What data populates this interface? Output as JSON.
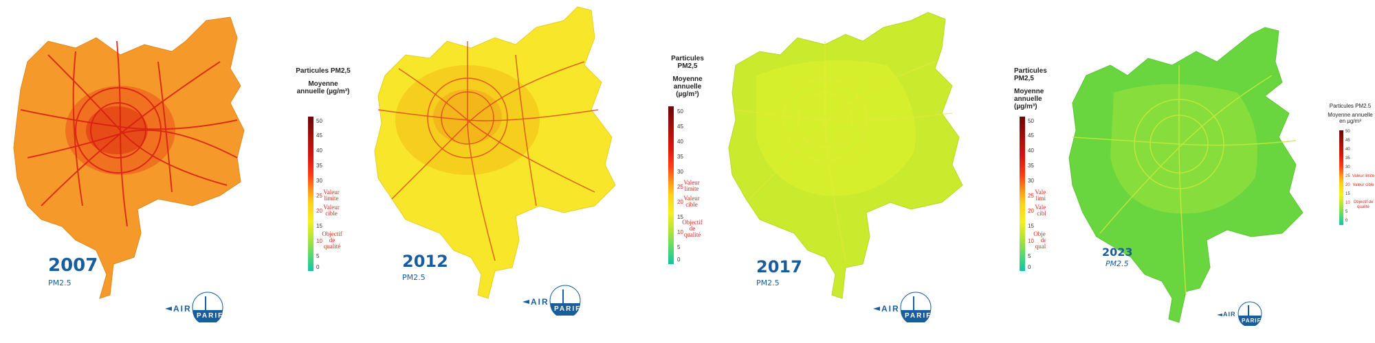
{
  "panels": [
    {
      "year": "2007",
      "subtitle": "PM2.5",
      "fill": "#f59a2a",
      "center": "#ef6b1e",
      "road": "#d81b12",
      "legend": {
        "title1": "Particules PM2,5",
        "title2": "Moyenne annuelle (µg/m³)",
        "ticks": [
          "50",
          "45",
          "40",
          "35",
          "30",
          "25",
          "20",
          "15",
          "10",
          "5",
          "0"
        ],
        "ann_limit": "Valeur limite",
        "ann_target": "Valeur cible",
        "ann_quality": "Objectif de qualité"
      }
    },
    {
      "year": "2012",
      "subtitle": "PM2.5",
      "fill": "#f7e62a",
      "center": "#f4c81c",
      "road": "#de3216",
      "legend": {
        "title1": "Particules PM2,5",
        "title2": "Moyenne annuelle (µg/m³)",
        "ticks": [
          "50",
          "45",
          "40",
          "35",
          "30",
          "25",
          "20",
          "15",
          "10",
          "5",
          "0"
        ],
        "ann_limit": "Valeur limite",
        "ann_target": "Valeur cible",
        "ann_quality": "Objectif de qualité"
      }
    },
    {
      "year": "2017",
      "subtitle": "PM2.5",
      "fill": "#c9ea2d",
      "center": "#d7ef2e",
      "road": "#e6e83a",
      "legend": {
        "title1": "Particules PM2,5",
        "title2": "Moyenne annuelle (µg/m³)",
        "ticks": [
          "50",
          "45",
          "40",
          "35",
          "30",
          "25",
          "20",
          "15",
          "10",
          "5",
          "0"
        ],
        "ann_limit": "Valeur limite",
        "ann_target": "Valeur cible",
        "ann_quality": "Objectif de qualité"
      }
    },
    {
      "year": "2023",
      "subtitle": "PM2.5",
      "fill": "#69d63f",
      "center": "#9ee23b",
      "road": "#c8ea3a",
      "legend": {
        "title1": "Particules PM2.5",
        "title2": "Moyenne annuelle en µg/m³",
        "ticks": [
          "50",
          "45",
          "40",
          "35",
          "30",
          "25",
          "20",
          "15",
          "10",
          "5",
          "0"
        ],
        "ann_limit": "Valeur limite",
        "ann_target": "Valeur cible",
        "ann_quality": "Objectif de qualité"
      }
    }
  ],
  "logo": {
    "text_air": "AIR",
    "text_parif": "PARIF"
  }
}
